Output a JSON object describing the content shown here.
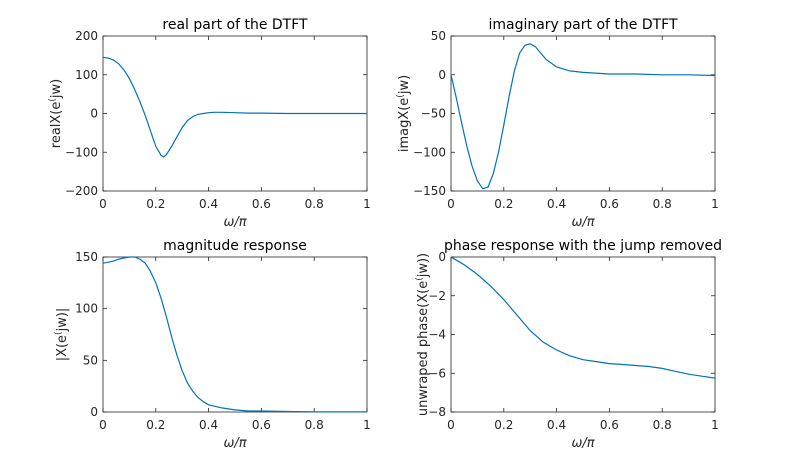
{
  "colors": {
    "series": "#0072BD",
    "axis": "#262626",
    "background": "#ffffff"
  },
  "chart_data": [
    {
      "type": "line",
      "title": "real part of the DTFT",
      "xlabel": "ω/π",
      "ylabel": "realX(e^(jw))",
      "xlim": [
        0,
        1
      ],
      "ylim": [
        -200,
        200
      ],
      "xticks": [
        "0",
        "0.2",
        "0.4",
        "0.6",
        "0.8",
        "1"
      ],
      "yticks": [
        "−200",
        "−100",
        "0",
        "100",
        "200"
      ],
      "grid": false,
      "series": [
        {
          "x": [
            0,
            0.02,
            0.04,
            0.06,
            0.08,
            0.1,
            0.12,
            0.14,
            0.16,
            0.18,
            0.2,
            0.22,
            0.23,
            0.24,
            0.26,
            0.28,
            0.3,
            0.32,
            0.34,
            0.36,
            0.38,
            0.4,
            0.42,
            0.45,
            0.5,
            0.55,
            0.6,
            0.7,
            0.8,
            0.9,
            1.0
          ],
          "values": [
            145,
            143,
            138,
            128,
            112,
            90,
            62,
            30,
            -5,
            -45,
            -85,
            -108,
            -112,
            -106,
            -85,
            -60,
            -36,
            -18,
            -8,
            -2,
            0,
            2,
            3,
            3,
            2,
            1,
            1,
            0,
            0,
            0,
            0
          ]
        }
      ]
    },
    {
      "type": "line",
      "title": "imaginary part of the DTFT",
      "xlabel": "ω/π",
      "ylabel": "imagX(e^(jw))",
      "xlim": [
        0,
        1
      ],
      "ylim": [
        -150,
        50
      ],
      "xticks": [
        "0",
        "0.2",
        "0.4",
        "0.6",
        "0.8",
        "1"
      ],
      "yticks": [
        "−150",
        "−100",
        "−50",
        "0",
        "50"
      ],
      "grid": false,
      "series": [
        {
          "x": [
            0,
            0.02,
            0.04,
            0.06,
            0.08,
            0.1,
            0.12,
            0.14,
            0.16,
            0.18,
            0.2,
            0.22,
            0.24,
            0.26,
            0.28,
            0.3,
            0.32,
            0.34,
            0.36,
            0.4,
            0.45,
            0.5,
            0.6,
            0.7,
            0.8,
            0.9,
            1.0
          ],
          "values": [
            0,
            -30,
            -62,
            -92,
            -118,
            -137,
            -147,
            -145,
            -128,
            -100,
            -65,
            -28,
            5,
            28,
            38,
            40,
            36,
            28,
            20,
            10,
            5,
            3,
            1,
            1,
            0,
            0,
            -1
          ]
        }
      ]
    },
    {
      "type": "line",
      "title": "magnitude response",
      "xlabel": "ω/π",
      "ylabel": "|X(e^(jw))|",
      "xlim": [
        0,
        1
      ],
      "ylim": [
        0,
        150
      ],
      "xticks": [
        "0",
        "0.2",
        "0.4",
        "0.6",
        "0.8",
        "1"
      ],
      "yticks": [
        "0",
        "50",
        "100",
        "150"
      ],
      "grid": false,
      "series": [
        {
          "x": [
            0,
            0.02,
            0.04,
            0.06,
            0.08,
            0.1,
            0.12,
            0.14,
            0.16,
            0.18,
            0.2,
            0.22,
            0.24,
            0.26,
            0.28,
            0.3,
            0.32,
            0.34,
            0.36,
            0.38,
            0.4,
            0.45,
            0.5,
            0.55,
            0.6,
            0.7,
            0.8,
            0.9,
            1.0
          ],
          "values": [
            144,
            145,
            146,
            148,
            149,
            150,
            150,
            148,
            144,
            136,
            125,
            110,
            92,
            73,
            55,
            40,
            28,
            20,
            14,
            10,
            7,
            4,
            2,
            1,
            1,
            0.5,
            0.2,
            0.1,
            0.1
          ]
        }
      ]
    },
    {
      "type": "line",
      "title": "phase response with the jump removed",
      "xlabel": "ω/π",
      "ylabel": "unwraped phase(X(e^(jw)))",
      "xlim": [
        0,
        1
      ],
      "ylim": [
        -8,
        0
      ],
      "xticks": [
        "0",
        "0.2",
        "0.4",
        "0.6",
        "0.8",
        "1"
      ],
      "yticks": [
        "−8",
        "−6",
        "−4",
        "−2",
        "0"
      ],
      "grid": false,
      "series": [
        {
          "x": [
            0,
            0.05,
            0.1,
            0.15,
            0.2,
            0.25,
            0.3,
            0.35,
            0.4,
            0.45,
            0.5,
            0.55,
            0.6,
            0.65,
            0.7,
            0.75,
            0.8,
            0.85,
            0.9,
            0.95,
            1.0
          ],
          "values": [
            0,
            -0.4,
            -0.9,
            -1.5,
            -2.2,
            -3.0,
            -3.8,
            -4.4,
            -4.8,
            -5.1,
            -5.3,
            -5.4,
            -5.5,
            -5.55,
            -5.6,
            -5.65,
            -5.75,
            -5.9,
            -6.05,
            -6.15,
            -6.25
          ]
        }
      ]
    }
  ]
}
